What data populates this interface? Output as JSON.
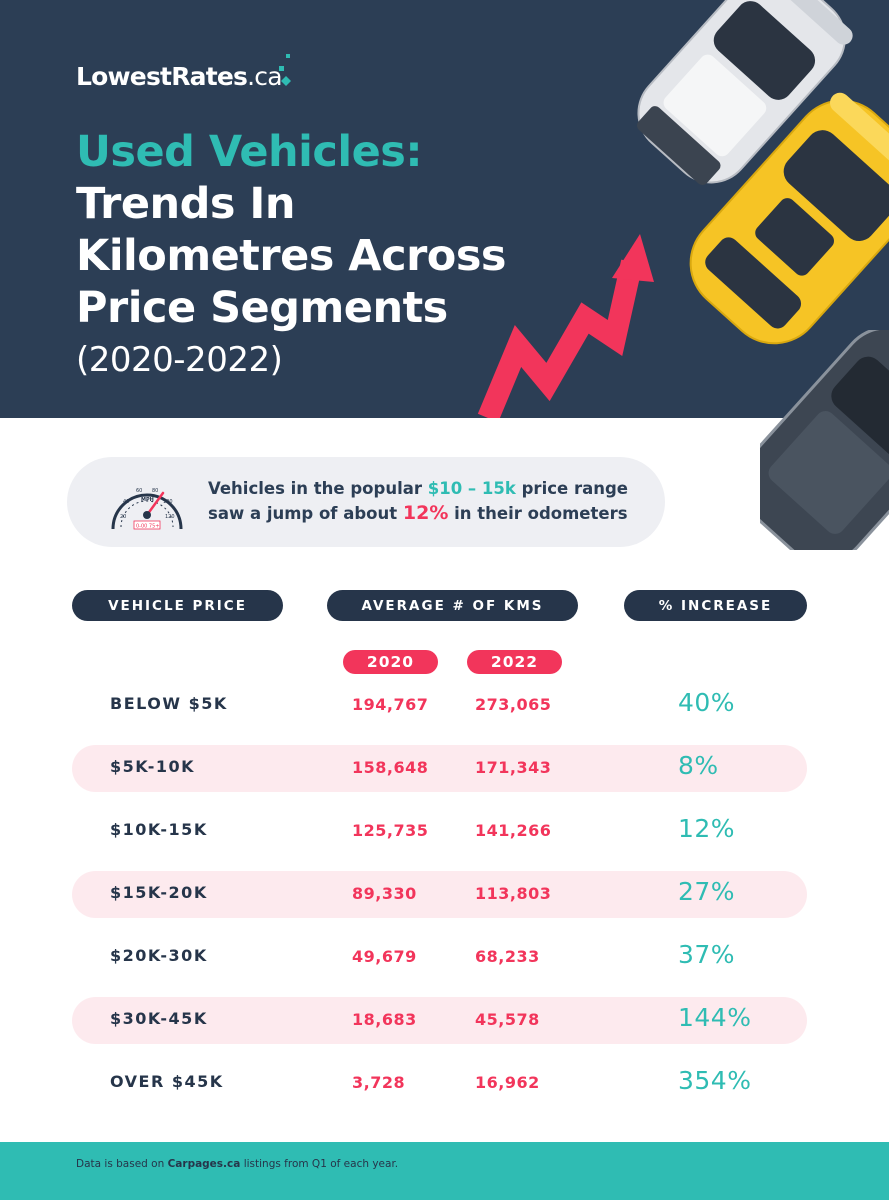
{
  "brand": {
    "name": "LowestRates",
    "tld": ".ca"
  },
  "title": {
    "accent": "Used Vehicles:",
    "lines": [
      "Trends In",
      "Kilometres Across",
      "Price Segments"
    ],
    "years": "(2020-2022)"
  },
  "callout": {
    "line1_a": "Vehicles in the popular ",
    "line1_hl": "$10 – 15k",
    "line1_b": " price range",
    "line2_a": "saw a jump of about ",
    "line2_hl": "12%",
    "line2_b": " in their odometers",
    "speedo": {
      "mph": "MPH",
      "odo": "0-00 75+",
      "ticks": [
        "20",
        "40",
        "60",
        "80",
        "100",
        "120"
      ]
    }
  },
  "table": {
    "headers": {
      "price": "VEHICLE PRICE",
      "kms": "AVERAGE # OF KMS",
      "increase": "% INCREASE"
    },
    "years": [
      "2020",
      "2022"
    ],
    "rows": [
      {
        "segment": "BELOW $5K",
        "v2020": "194,767",
        "v2022": "273,065",
        "pct": "40%"
      },
      {
        "segment": "$5K-10K",
        "v2020": "158,648",
        "v2022": "171,343",
        "pct": "8%"
      },
      {
        "segment": "$10K-15K",
        "v2020": "125,735",
        "v2022": "141,266",
        "pct": "12%"
      },
      {
        "segment": "$15K-20K",
        "v2020": "89,330",
        "v2022": "113,803",
        "pct": "27%"
      },
      {
        "segment": "$20K-30K",
        "v2020": "49,679",
        "v2022": "68,233",
        "pct": "37%"
      },
      {
        "segment": "$30K-45K",
        "v2020": "18,683",
        "v2022": "45,578",
        "pct": "144%"
      },
      {
        "segment": "OVER $45K",
        "v2020": "3,728",
        "v2022": "16,962",
        "pct": "354%"
      }
    ]
  },
  "footer": {
    "a": "Data is based on ",
    "b": "Carpages.ca",
    "c": " listings from Q1 of each year."
  },
  "colors": {
    "navy": "#2c3e55",
    "teal": "#2fbcb3",
    "pink": "#f2355b",
    "row_shade": "#fdeaee",
    "callout_bg": "#eeeff3"
  }
}
